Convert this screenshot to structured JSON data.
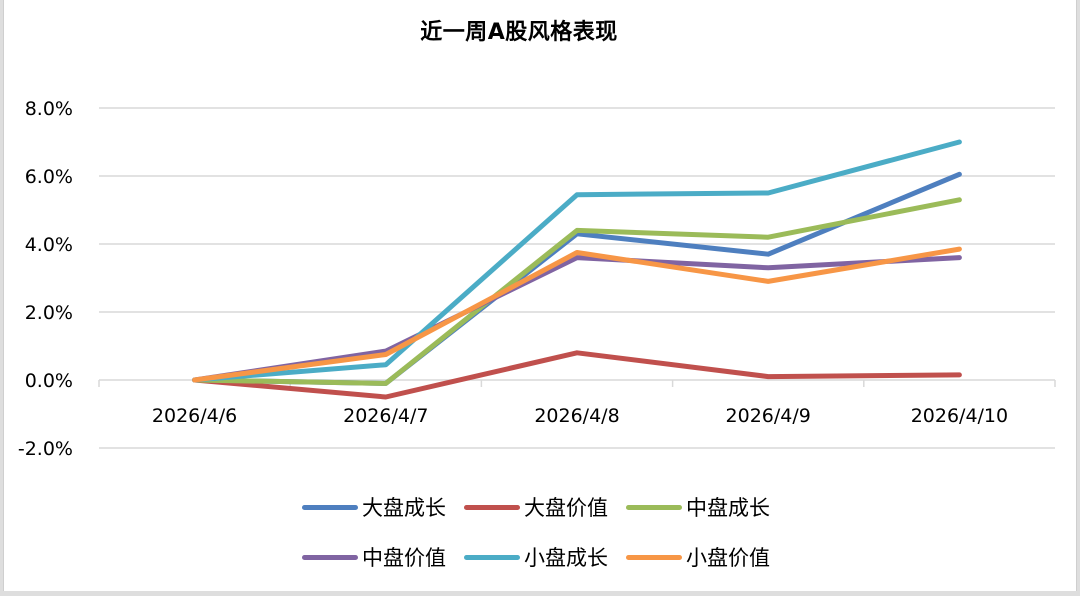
{
  "chart_data": {
    "type": "line",
    "title": "近一周A股风格表现",
    "xlabel": "",
    "ylabel": "",
    "categories": [
      "2026/4/6",
      "2026/4/7",
      "2026/4/8",
      "2026/4/9",
      "2026/4/10"
    ],
    "ylim": [
      -0.02,
      0.08
    ],
    "yticks": [
      "-2.0%",
      "0.0%",
      "2.0%",
      "4.0%",
      "6.0%",
      "8.0%"
    ],
    "grid": true,
    "legend_position": "bottom",
    "series": [
      {
        "name": "大盘成长",
        "color": "#4e7fbf",
        "values": [
          0.0,
          -0.1,
          4.3,
          3.7,
          6.05
        ]
      },
      {
        "name": "大盘价值",
        "color": "#c0504d",
        "values": [
          0.0,
          -0.5,
          0.8,
          0.1,
          0.15
        ]
      },
      {
        "name": "中盘成长",
        "color": "#9bbb59",
        "values": [
          0.0,
          -0.1,
          4.4,
          4.2,
          5.3
        ]
      },
      {
        "name": "中盘价值",
        "color": "#8064a2",
        "values": [
          0.0,
          0.85,
          3.6,
          3.3,
          3.6
        ]
      },
      {
        "name": "小盘成长",
        "color": "#4bacc6",
        "values": [
          0.0,
          0.45,
          5.45,
          5.5,
          7.0
        ]
      },
      {
        "name": "小盘价值",
        "color": "#f79646",
        "values": [
          0.0,
          0.75,
          3.75,
          2.9,
          3.85
        ]
      }
    ],
    "value_unit": "%"
  }
}
